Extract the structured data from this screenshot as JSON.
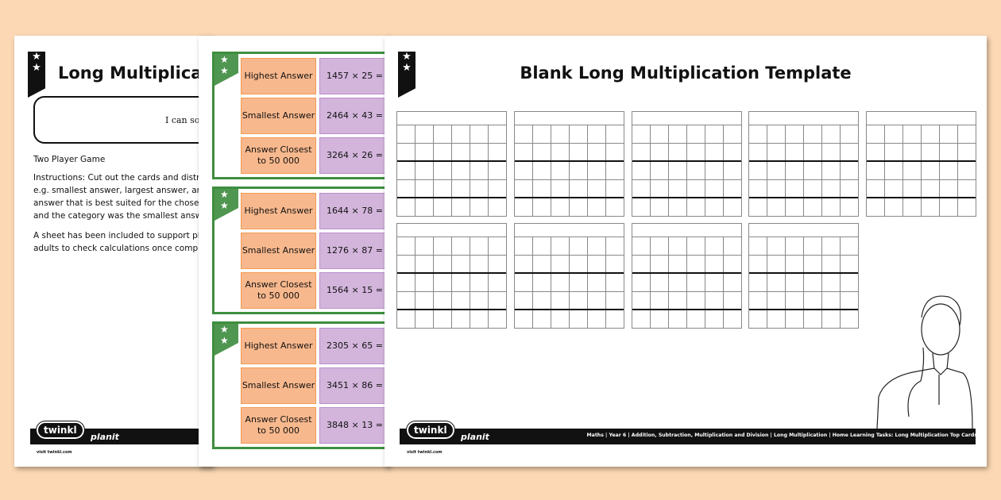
{
  "sheet1": {
    "title": "Long Multiplicat",
    "objective": "I can solv",
    "heading": "Two Player Game",
    "instructions": [
      "Instructions: Cut out the cards and distril",
      "e.g. smallest answer, largest answer, answ",
      "answer that is best suited for the chosen c",
      "and the category was the smallest answe"
    ],
    "note": [
      "A sheet has been included to support pl",
      "adults to check calculations once comple"
    ]
  },
  "sheet2": {
    "cards": [
      {
        "rows": [
          {
            "category": "Highest Answer",
            "sum": "1457 × 25 ="
          },
          {
            "category": "Smallest Answer",
            "sum": "2464 × 43 ="
          },
          {
            "category": "Answer Closest to 50 000",
            "sum": "3264 × 26 ="
          }
        ]
      },
      {
        "rows": [
          {
            "category": "Highest Answer",
            "sum": "1644 × 78 ="
          },
          {
            "category": "Smallest Answer",
            "sum": "1276 × 87 ="
          },
          {
            "category": "Answer Closest to 50 000",
            "sum": "1564 × 15 ="
          }
        ]
      },
      {
        "rows": [
          {
            "category": "Highest Answer",
            "sum": "2305 × 65 ="
          },
          {
            "category": "Smallest Answer",
            "sum": "3451 × 86 ="
          },
          {
            "category": "Answer Closest to 50 000",
            "sum": "3848 × 13 ="
          }
        ]
      }
    ],
    "colors": {
      "border": "#3e8e3e",
      "category": "#f8b88d",
      "sum": "#d3b5dc"
    }
  },
  "sheet3": {
    "title": "Blank Long Multiplication Template",
    "grid_count": 9,
    "breadcrumb": "Maths | Year 6 | Addition, Subtraction, Multiplication and Division | Long Multiplication | Home Learning Tasks: Long Multiplication Top Cards"
  },
  "branding": {
    "logo": "twinkl",
    "planit": "planit",
    "visit": "visit twinkl.com"
  },
  "colors": {
    "background": "#fcd9b4"
  }
}
